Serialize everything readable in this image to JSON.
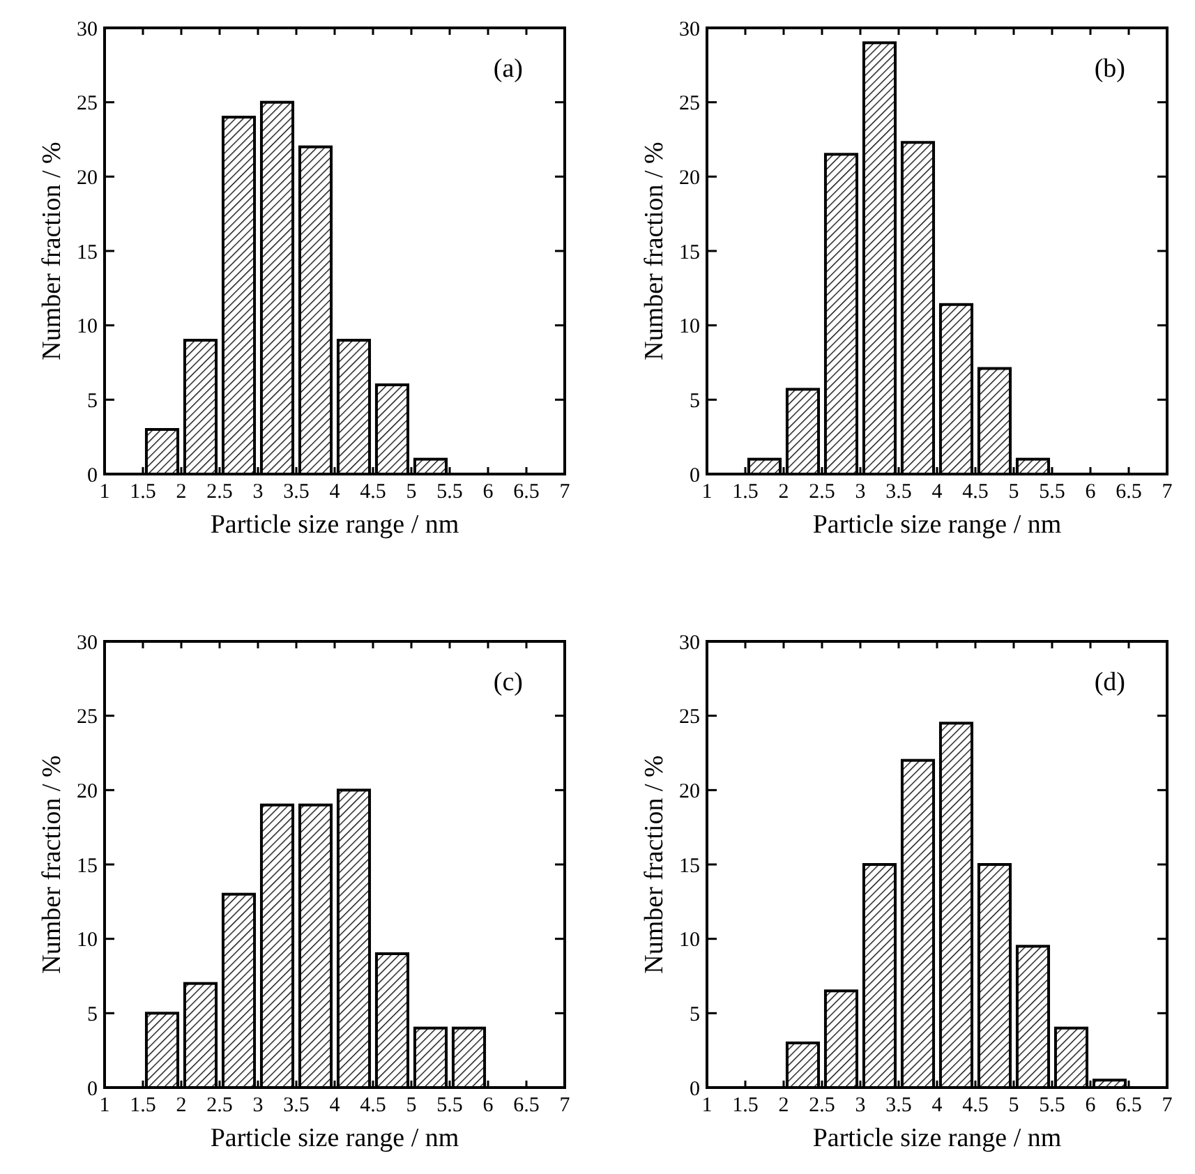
{
  "chart_data": [
    {
      "type": "histogram",
      "bins": [
        1.5,
        2,
        2.5,
        3,
        3.5,
        4,
        4.5,
        5,
        5.5
      ],
      "values": [
        3,
        9,
        24,
        25,
        22,
        9,
        6,
        1
      ],
      "xlabel": "Particle size range / nm",
      "ylabel": "Number fraction / %",
      "annotations": [
        "(a)"
      ],
      "xlim": [
        1,
        7
      ],
      "xticks": [
        1,
        1.5,
        2,
        2.5,
        3,
        3.5,
        4,
        4.5,
        5,
        5.5,
        6,
        6.5,
        7
      ],
      "ylim": [
        0,
        30
      ],
      "yticks": [
        0,
        5,
        10,
        15,
        20,
        25,
        30
      ],
      "grid": false
    },
    {
      "type": "histogram",
      "bins": [
        1.5,
        2,
        2.5,
        3,
        3.5,
        4,
        4.5,
        5,
        5.5
      ],
      "values": [
        1,
        5.7,
        21.5,
        29,
        22.3,
        11.4,
        7.1,
        1
      ],
      "xlabel": "Particle size range / nm",
      "ylabel": "Number fraction / %",
      "annotations": [
        "(b)"
      ],
      "xlim": [
        1,
        7
      ],
      "xticks": [
        1,
        1.5,
        2,
        2.5,
        3,
        3.5,
        4,
        4.5,
        5,
        5.5,
        6,
        6.5,
        7
      ],
      "ylim": [
        0,
        30
      ],
      "yticks": [
        0,
        5,
        10,
        15,
        20,
        25,
        30
      ],
      "grid": false
    },
    {
      "type": "histogram",
      "bins": [
        1.5,
        2,
        2.5,
        3,
        3.5,
        4,
        4.5,
        5,
        5.5,
        6
      ],
      "values": [
        5,
        7,
        13,
        19,
        19,
        20,
        9,
        4,
        4
      ],
      "xlabel": "Particle size range / nm",
      "ylabel": "Number fraction / %",
      "annotations": [
        "(c)"
      ],
      "xlim": [
        1,
        7
      ],
      "xticks": [
        1,
        1.5,
        2,
        2.5,
        3,
        3.5,
        4,
        4.5,
        5,
        5.5,
        6,
        6.5,
        7
      ],
      "ylim": [
        0,
        30
      ],
      "yticks": [
        0,
        5,
        10,
        15,
        20,
        25,
        30
      ],
      "grid": false
    },
    {
      "type": "histogram",
      "bins": [
        2,
        2.5,
        3,
        3.5,
        4,
        4.5,
        5,
        5.5,
        6,
        6.5
      ],
      "values": [
        3,
        6.5,
        15,
        22,
        24.5,
        15,
        9.5,
        4,
        0.5
      ],
      "xlabel": "Particle size range / nm",
      "ylabel": "Number fraction / %",
      "annotations": [
        "(d)"
      ],
      "xlim": [
        1,
        7
      ],
      "xticks": [
        1,
        1.5,
        2,
        2.5,
        3,
        3.5,
        4,
        4.5,
        5,
        5.5,
        6,
        6.5,
        7
      ],
      "ylim": [
        0,
        30
      ],
      "yticks": [
        0,
        5,
        10,
        15,
        20,
        25,
        30
      ],
      "grid": false
    }
  ]
}
